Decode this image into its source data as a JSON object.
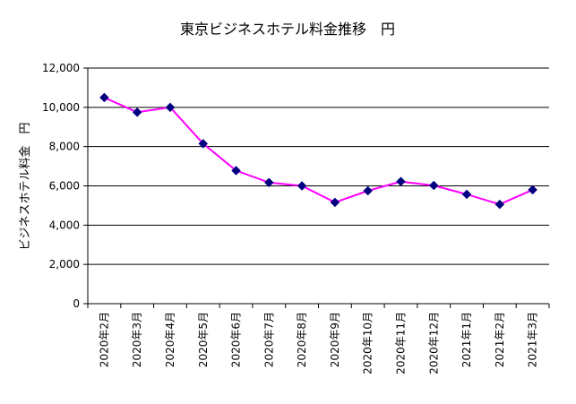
{
  "chart_data": {
    "type": "line",
    "title": "東京ビジネスホテル料金推移　円",
    "xlabel": "",
    "ylabel": "ビジネスホテル料金　円",
    "categories": [
      "2020年2月",
      "2020年3月",
      "2020年4月",
      "2020年5月",
      "2020年6月",
      "2020年7月",
      "2020年8月",
      "2020年9月",
      "2020年10月",
      "2020年11月",
      "2020年12月",
      "2021年1月",
      "2021年2月",
      "2021年3月"
    ],
    "series": [
      {
        "values": [
          10500,
          9750,
          10000,
          8150,
          6780,
          6170,
          6000,
          5160,
          5750,
          6220,
          6020,
          5570,
          5060,
          5800
        ],
        "line_color": "#ff00ff",
        "marker_color": "#000080",
        "marker": "diamond"
      }
    ],
    "ylim": [
      0,
      12000
    ],
    "yticks": [
      0,
      2000,
      4000,
      6000,
      8000,
      10000,
      12000
    ],
    "ytick_labels": [
      "0",
      "2,000",
      "4,000",
      "6,000",
      "8,000",
      "10,000",
      "12,000"
    ],
    "grid": true,
    "legend": "none"
  }
}
